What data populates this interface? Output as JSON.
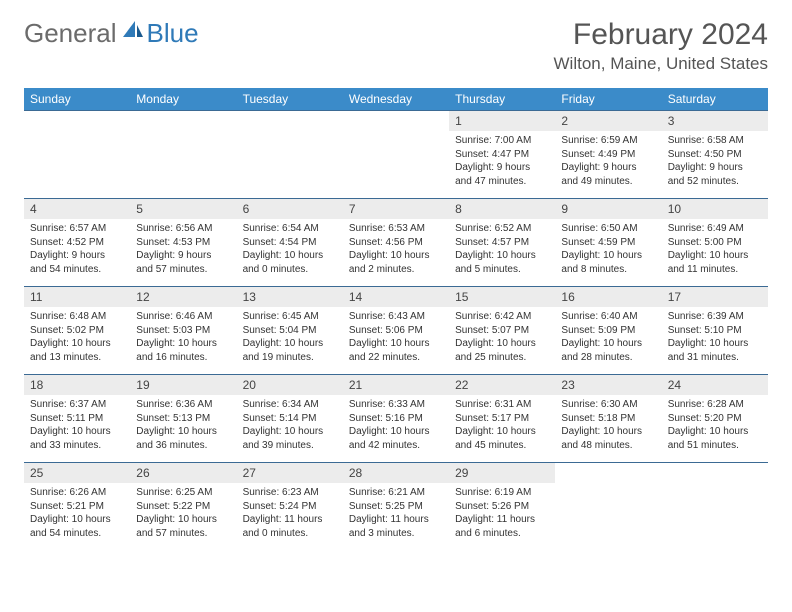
{
  "logo": {
    "text1": "General",
    "text2": "Blue"
  },
  "title": "February 2024",
  "location": "Wilton, Maine, United States",
  "columns": [
    "Sunday",
    "Monday",
    "Tuesday",
    "Wednesday",
    "Thursday",
    "Friday",
    "Saturday"
  ],
  "colors": {
    "header_bg": "#3b8bc9",
    "header_text": "#ffffff",
    "row_border": "#3b6a94",
    "daynum_bg": "#ececec",
    "logo_gray": "#6b6b6b",
    "logo_blue": "#2f7ab8"
  },
  "weeks": [
    [
      null,
      null,
      null,
      null,
      {
        "n": "1",
        "sr": "Sunrise: 7:00 AM",
        "ss": "Sunset: 4:47 PM",
        "d1": "Daylight: 9 hours",
        "d2": "and 47 minutes."
      },
      {
        "n": "2",
        "sr": "Sunrise: 6:59 AM",
        "ss": "Sunset: 4:49 PM",
        "d1": "Daylight: 9 hours",
        "d2": "and 49 minutes."
      },
      {
        "n": "3",
        "sr": "Sunrise: 6:58 AM",
        "ss": "Sunset: 4:50 PM",
        "d1": "Daylight: 9 hours",
        "d2": "and 52 minutes."
      }
    ],
    [
      {
        "n": "4",
        "sr": "Sunrise: 6:57 AM",
        "ss": "Sunset: 4:52 PM",
        "d1": "Daylight: 9 hours",
        "d2": "and 54 minutes."
      },
      {
        "n": "5",
        "sr": "Sunrise: 6:56 AM",
        "ss": "Sunset: 4:53 PM",
        "d1": "Daylight: 9 hours",
        "d2": "and 57 minutes."
      },
      {
        "n": "6",
        "sr": "Sunrise: 6:54 AM",
        "ss": "Sunset: 4:54 PM",
        "d1": "Daylight: 10 hours",
        "d2": "and 0 minutes."
      },
      {
        "n": "7",
        "sr": "Sunrise: 6:53 AM",
        "ss": "Sunset: 4:56 PM",
        "d1": "Daylight: 10 hours",
        "d2": "and 2 minutes."
      },
      {
        "n": "8",
        "sr": "Sunrise: 6:52 AM",
        "ss": "Sunset: 4:57 PM",
        "d1": "Daylight: 10 hours",
        "d2": "and 5 minutes."
      },
      {
        "n": "9",
        "sr": "Sunrise: 6:50 AM",
        "ss": "Sunset: 4:59 PM",
        "d1": "Daylight: 10 hours",
        "d2": "and 8 minutes."
      },
      {
        "n": "10",
        "sr": "Sunrise: 6:49 AM",
        "ss": "Sunset: 5:00 PM",
        "d1": "Daylight: 10 hours",
        "d2": "and 11 minutes."
      }
    ],
    [
      {
        "n": "11",
        "sr": "Sunrise: 6:48 AM",
        "ss": "Sunset: 5:02 PM",
        "d1": "Daylight: 10 hours",
        "d2": "and 13 minutes."
      },
      {
        "n": "12",
        "sr": "Sunrise: 6:46 AM",
        "ss": "Sunset: 5:03 PM",
        "d1": "Daylight: 10 hours",
        "d2": "and 16 minutes."
      },
      {
        "n": "13",
        "sr": "Sunrise: 6:45 AM",
        "ss": "Sunset: 5:04 PM",
        "d1": "Daylight: 10 hours",
        "d2": "and 19 minutes."
      },
      {
        "n": "14",
        "sr": "Sunrise: 6:43 AM",
        "ss": "Sunset: 5:06 PM",
        "d1": "Daylight: 10 hours",
        "d2": "and 22 minutes."
      },
      {
        "n": "15",
        "sr": "Sunrise: 6:42 AM",
        "ss": "Sunset: 5:07 PM",
        "d1": "Daylight: 10 hours",
        "d2": "and 25 minutes."
      },
      {
        "n": "16",
        "sr": "Sunrise: 6:40 AM",
        "ss": "Sunset: 5:09 PM",
        "d1": "Daylight: 10 hours",
        "d2": "and 28 minutes."
      },
      {
        "n": "17",
        "sr": "Sunrise: 6:39 AM",
        "ss": "Sunset: 5:10 PM",
        "d1": "Daylight: 10 hours",
        "d2": "and 31 minutes."
      }
    ],
    [
      {
        "n": "18",
        "sr": "Sunrise: 6:37 AM",
        "ss": "Sunset: 5:11 PM",
        "d1": "Daylight: 10 hours",
        "d2": "and 33 minutes."
      },
      {
        "n": "19",
        "sr": "Sunrise: 6:36 AM",
        "ss": "Sunset: 5:13 PM",
        "d1": "Daylight: 10 hours",
        "d2": "and 36 minutes."
      },
      {
        "n": "20",
        "sr": "Sunrise: 6:34 AM",
        "ss": "Sunset: 5:14 PM",
        "d1": "Daylight: 10 hours",
        "d2": "and 39 minutes."
      },
      {
        "n": "21",
        "sr": "Sunrise: 6:33 AM",
        "ss": "Sunset: 5:16 PM",
        "d1": "Daylight: 10 hours",
        "d2": "and 42 minutes."
      },
      {
        "n": "22",
        "sr": "Sunrise: 6:31 AM",
        "ss": "Sunset: 5:17 PM",
        "d1": "Daylight: 10 hours",
        "d2": "and 45 minutes."
      },
      {
        "n": "23",
        "sr": "Sunrise: 6:30 AM",
        "ss": "Sunset: 5:18 PM",
        "d1": "Daylight: 10 hours",
        "d2": "and 48 minutes."
      },
      {
        "n": "24",
        "sr": "Sunrise: 6:28 AM",
        "ss": "Sunset: 5:20 PM",
        "d1": "Daylight: 10 hours",
        "d2": "and 51 minutes."
      }
    ],
    [
      {
        "n": "25",
        "sr": "Sunrise: 6:26 AM",
        "ss": "Sunset: 5:21 PM",
        "d1": "Daylight: 10 hours",
        "d2": "and 54 minutes."
      },
      {
        "n": "26",
        "sr": "Sunrise: 6:25 AM",
        "ss": "Sunset: 5:22 PM",
        "d1": "Daylight: 10 hours",
        "d2": "and 57 minutes."
      },
      {
        "n": "27",
        "sr": "Sunrise: 6:23 AM",
        "ss": "Sunset: 5:24 PM",
        "d1": "Daylight: 11 hours",
        "d2": "and 0 minutes."
      },
      {
        "n": "28",
        "sr": "Sunrise: 6:21 AM",
        "ss": "Sunset: 5:25 PM",
        "d1": "Daylight: 11 hours",
        "d2": "and 3 minutes."
      },
      {
        "n": "29",
        "sr": "Sunrise: 6:19 AM",
        "ss": "Sunset: 5:26 PM",
        "d1": "Daylight: 11 hours",
        "d2": "and 6 minutes."
      },
      null,
      null
    ]
  ]
}
